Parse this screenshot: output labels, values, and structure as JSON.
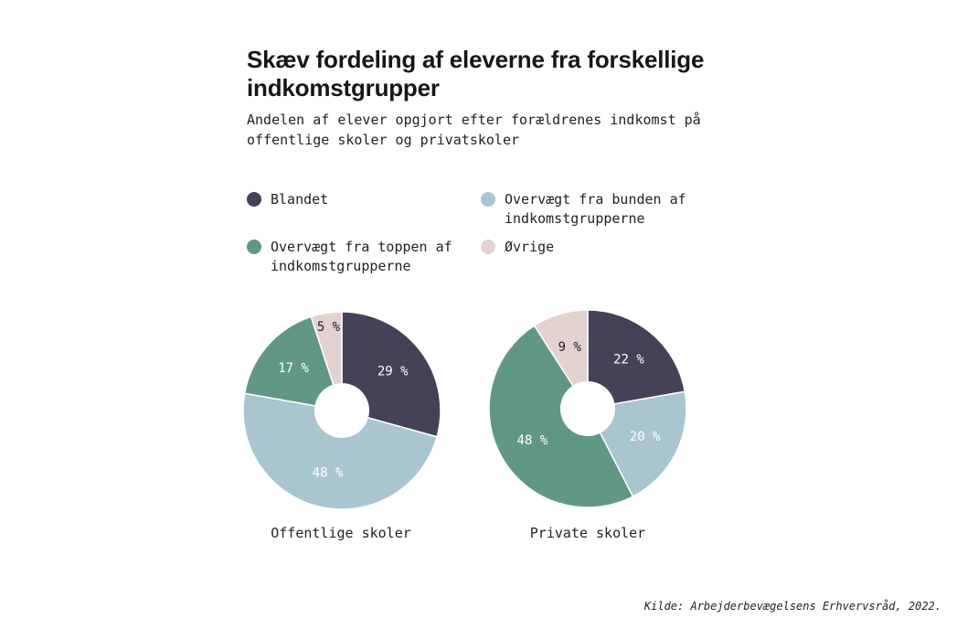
{
  "title": "Skæv fordeling af eleverne fra forskellige indkomstgrupper",
  "subtitle": "Andelen af elever opgjort efter forældrenes indkomst på offentlige skoler og privatskoler",
  "source": "Kilde: Arbejderbevægelsens Erhvervsråd, 2022.",
  "legend": [
    {
      "label": "Blandet",
      "color": "#444158"
    },
    {
      "label": "Overvægt fra bunden af indkomstgrupperne",
      "color": "#a9c5d0"
    },
    {
      "label": "Overvægt fra toppen af indkomstgrupperne",
      "color": "#629786"
    },
    {
      "label": "Øvrige",
      "color": "#e4d2d1"
    }
  ],
  "chart_data": {
    "type": "pie",
    "categories": [
      "Blandet",
      "Overvægt fra bunden af indkomstgrupperne",
      "Overvægt fra toppen af indkomstgrupperne",
      "Øvrige"
    ],
    "series": [
      {
        "name": "Offentlige skoler",
        "values": [
          29,
          48,
          17,
          5
        ],
        "labels": [
          "29 %",
          "48 %",
          "17 %",
          "5 %"
        ]
      },
      {
        "name": "Private skoler",
        "values": [
          22,
          20,
          48,
          9
        ],
        "labels": [
          "22 %",
          "20 %",
          "48 %",
          "9 %"
        ]
      }
    ],
    "unit": "%",
    "colors": [
      "#444158",
      "#a9c5d0",
      "#629786",
      "#e4d2d1"
    ],
    "label_colors": [
      "#ffffff",
      "#ffffff",
      "#ffffff",
      "#222222"
    ],
    "hole": true
  }
}
